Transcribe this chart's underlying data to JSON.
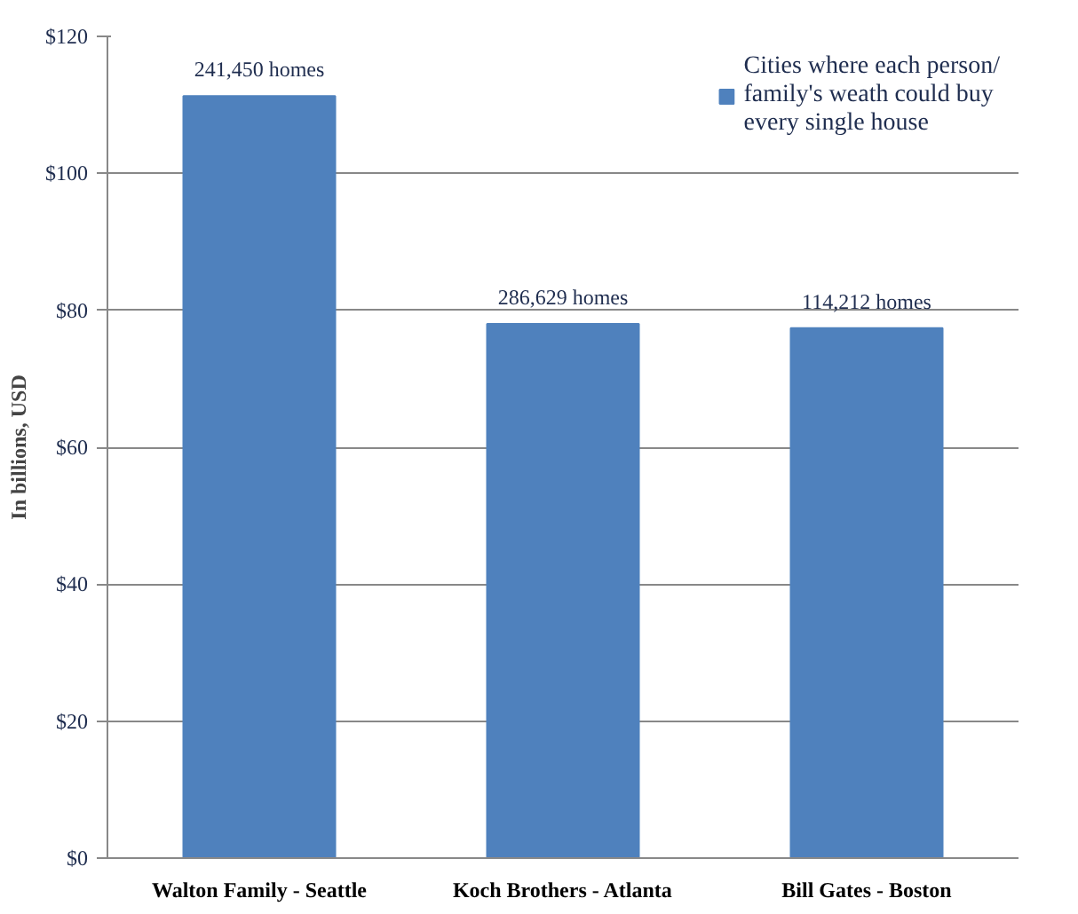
{
  "chart_data": {
    "type": "bar",
    "ylabel": "In billions, USD",
    "categories": [
      "Walton Family - Seattle",
      "Koch Brothers - Atlanta",
      "Bill Gates - Boston"
    ],
    "series": [
      {
        "name": "Cities where each person/\nfamily's weath could buy\nevery single house",
        "color": "#4f81bd",
        "values": [
          111.3,
          78.0,
          77.4
        ]
      }
    ],
    "annotations": [
      {
        "text": "241,450 homes",
        "x": "Walton Family - Seattle",
        "y": 111.3
      },
      {
        "text": "286,629 homes",
        "x": "Koch Brothers - Atlanta",
        "y": 78.0
      },
      {
        "text": "114,212 homes",
        "x": "Bill Gates - Boston",
        "y": 77.4
      }
    ],
    "ylim": [
      0,
      120
    ],
    "yticks": [
      {
        "value": 0,
        "label": "$0"
      },
      {
        "value": 20,
        "label": "$20"
      },
      {
        "value": 40,
        "label": "$40"
      },
      {
        "value": 60,
        "label": "$60"
      },
      {
        "value": 80,
        "label": "$80"
      },
      {
        "value": 100,
        "label": "$100"
      },
      {
        "value": 120,
        "label": "$120"
      }
    ],
    "grid": "y",
    "legend": "top right"
  }
}
